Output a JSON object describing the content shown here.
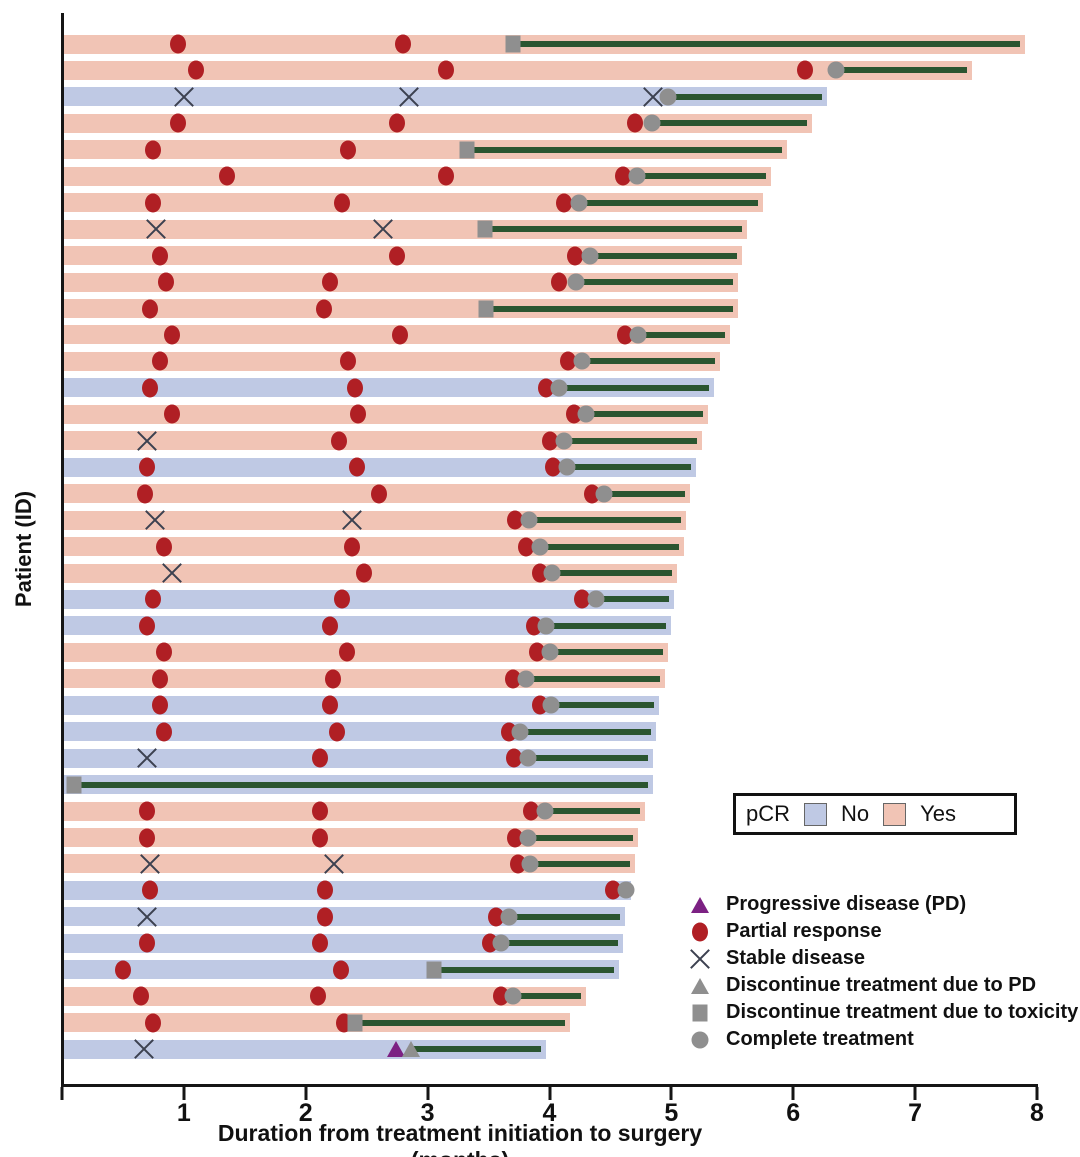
{
  "chart_data": {
    "type": "bar",
    "subtype": "swimmer-plot",
    "xlabel": "Duration from treatment initiation to surgery (months)",
    "ylabel": "Patient (ID)",
    "xlim": [
      0,
      8
    ],
    "xticks": [
      1,
      2,
      3,
      4,
      5,
      6,
      7,
      8
    ],
    "grid": false,
    "colors": {
      "pcr_yes": "#f1c4b5",
      "pcr_no": "#bfc9e4",
      "partial_response": "#b01f24",
      "marker_gray": "#8f8f8f",
      "treatment_line": "#2b5530",
      "progressive_disease": "#7c2183",
      "stable_x": "#3c4150",
      "axis": "#151515"
    },
    "pcr_legend": {
      "title": "pCR",
      "no_label": "No",
      "yes_label": "Yes"
    },
    "marker_legend": [
      {
        "marker": "PD",
        "label": "Progressive disease (PD)"
      },
      {
        "marker": "PR",
        "label": "Partial response"
      },
      {
        "marker": "SD",
        "label": "Stable disease"
      },
      {
        "marker": "DPD",
        "label": "Discontinue treatment due to PD"
      },
      {
        "marker": "TOX",
        "label": "Discontinue treatment due to toxicity"
      },
      {
        "marker": "COMP",
        "label": "Complete treatment"
      }
    ],
    "event_types": {
      "PD": "Progressive disease (PD)",
      "PR": "Partial response",
      "SD": "Stable disease",
      "DPD": "Discontinue treatment due to PD",
      "TOX": "Discontinue treatment due to toxicity",
      "COMP": "Complete treatment"
    },
    "patients": [
      {
        "pcr": "yes",
        "surgery": 7.9,
        "events": [
          [
            "PR",
            0.95
          ],
          [
            "PR",
            2.8
          ],
          [
            "TOX",
            3.7
          ]
        ]
      },
      {
        "pcr": "yes",
        "surgery": 7.47,
        "events": [
          [
            "PR",
            1.1
          ],
          [
            "PR",
            3.15
          ],
          [
            "PR",
            6.1
          ],
          [
            "COMP",
            6.35
          ]
        ]
      },
      {
        "pcr": "no",
        "surgery": 6.28,
        "events": [
          [
            "SD",
            1.0
          ],
          [
            "SD",
            2.85
          ],
          [
            "SD",
            4.85
          ],
          [
            "COMP",
            4.97
          ]
        ]
      },
      {
        "pcr": "yes",
        "surgery": 6.15,
        "events": [
          [
            "PR",
            0.95
          ],
          [
            "PR",
            2.75
          ],
          [
            "PR",
            4.7
          ],
          [
            "COMP",
            4.84
          ]
        ]
      },
      {
        "pcr": "yes",
        "surgery": 5.95,
        "events": [
          [
            "PR",
            0.75
          ],
          [
            "PR",
            2.35
          ],
          [
            "TOX",
            3.32
          ]
        ]
      },
      {
        "pcr": "yes",
        "surgery": 5.82,
        "events": [
          [
            "PR",
            1.35
          ],
          [
            "PR",
            3.15
          ],
          [
            "PR",
            4.6
          ],
          [
            "COMP",
            4.72
          ]
        ]
      },
      {
        "pcr": "yes",
        "surgery": 5.75,
        "events": [
          [
            "PR",
            0.75
          ],
          [
            "PR",
            2.3
          ],
          [
            "PR",
            4.12
          ],
          [
            "COMP",
            4.24
          ]
        ]
      },
      {
        "pcr": "yes",
        "surgery": 5.62,
        "events": [
          [
            "SD",
            0.77
          ],
          [
            "SD",
            2.63
          ],
          [
            "TOX",
            3.47
          ]
        ]
      },
      {
        "pcr": "yes",
        "surgery": 5.58,
        "events": [
          [
            "PR",
            0.8
          ],
          [
            "PR",
            2.75
          ],
          [
            "PR",
            4.21
          ],
          [
            "COMP",
            4.33
          ]
        ]
      },
      {
        "pcr": "yes",
        "surgery": 5.55,
        "events": [
          [
            "PR",
            0.85
          ],
          [
            "PR",
            2.2
          ],
          [
            "PR",
            4.08
          ],
          [
            "COMP",
            4.22
          ]
        ]
      },
      {
        "pcr": "yes",
        "surgery": 5.55,
        "events": [
          [
            "PR",
            0.72
          ],
          [
            "PR",
            2.15
          ],
          [
            "TOX",
            3.48
          ]
        ]
      },
      {
        "pcr": "yes",
        "surgery": 5.48,
        "events": [
          [
            "PR",
            0.9
          ],
          [
            "PR",
            2.77
          ],
          [
            "PR",
            4.62
          ],
          [
            "COMP",
            4.73
          ]
        ]
      },
      {
        "pcr": "yes",
        "surgery": 5.4,
        "events": [
          [
            "PR",
            0.8
          ],
          [
            "PR",
            2.35
          ],
          [
            "PR",
            4.15
          ],
          [
            "COMP",
            4.27
          ]
        ]
      },
      {
        "pcr": "no",
        "surgery": 5.35,
        "events": [
          [
            "PR",
            0.72
          ],
          [
            "PR",
            2.4
          ],
          [
            "PR",
            3.97
          ],
          [
            "COMP",
            4.08
          ]
        ]
      },
      {
        "pcr": "yes",
        "surgery": 5.3,
        "events": [
          [
            "PR",
            0.9
          ],
          [
            "PR",
            2.43
          ],
          [
            "PR",
            4.2
          ],
          [
            "COMP",
            4.3
          ]
        ]
      },
      {
        "pcr": "yes",
        "surgery": 5.25,
        "events": [
          [
            "SD",
            0.7
          ],
          [
            "PR",
            2.27
          ],
          [
            "PR",
            4.0
          ],
          [
            "COMP",
            4.12
          ]
        ]
      },
      {
        "pcr": "no",
        "surgery": 5.2,
        "events": [
          [
            "PR",
            0.7
          ],
          [
            "PR",
            2.42
          ],
          [
            "PR",
            4.03
          ],
          [
            "COMP",
            4.14
          ]
        ]
      },
      {
        "pcr": "yes",
        "surgery": 5.15,
        "events": [
          [
            "PR",
            0.68
          ],
          [
            "PR",
            2.6
          ],
          [
            "PR",
            4.35
          ],
          [
            "COMP",
            4.45
          ]
        ]
      },
      {
        "pcr": "yes",
        "surgery": 5.12,
        "events": [
          [
            "SD",
            0.76
          ],
          [
            "SD",
            2.38
          ],
          [
            "PR",
            3.72
          ],
          [
            "COMP",
            3.83
          ]
        ]
      },
      {
        "pcr": "yes",
        "surgery": 5.1,
        "events": [
          [
            "PR",
            0.84
          ],
          [
            "PR",
            2.38
          ],
          [
            "PR",
            3.81
          ],
          [
            "COMP",
            3.92
          ]
        ]
      },
      {
        "pcr": "yes",
        "surgery": 5.05,
        "events": [
          [
            "SD",
            0.9
          ],
          [
            "PR",
            2.48
          ],
          [
            "PR",
            3.92
          ],
          [
            "COMP",
            4.02
          ]
        ]
      },
      {
        "pcr": "no",
        "surgery": 5.02,
        "events": [
          [
            "PR",
            0.75
          ],
          [
            "PR",
            2.3
          ],
          [
            "PR",
            4.27
          ],
          [
            "COMP",
            4.38
          ]
        ]
      },
      {
        "pcr": "no",
        "surgery": 5.0,
        "events": [
          [
            "PR",
            0.7
          ],
          [
            "PR",
            2.2
          ],
          [
            "PR",
            3.87
          ],
          [
            "COMP",
            3.97
          ]
        ]
      },
      {
        "pcr": "yes",
        "surgery": 4.97,
        "events": [
          [
            "PR",
            0.84
          ],
          [
            "PR",
            2.34
          ],
          [
            "PR",
            3.9
          ],
          [
            "COMP",
            4.0
          ]
        ]
      },
      {
        "pcr": "yes",
        "surgery": 4.95,
        "events": [
          [
            "PR",
            0.8
          ],
          [
            "PR",
            2.22
          ],
          [
            "PR",
            3.7
          ],
          [
            "COMP",
            3.81
          ]
        ]
      },
      {
        "pcr": "no",
        "surgery": 4.9,
        "events": [
          [
            "PR",
            0.8
          ],
          [
            "PR",
            2.2
          ],
          [
            "PR",
            3.92
          ],
          [
            "COMP",
            4.01
          ]
        ]
      },
      {
        "pcr": "no",
        "surgery": 4.87,
        "events": [
          [
            "PR",
            0.84
          ],
          [
            "PR",
            2.26
          ],
          [
            "PR",
            3.67
          ],
          [
            "COMP",
            3.76
          ]
        ]
      },
      {
        "pcr": "no",
        "surgery": 4.85,
        "events": [
          [
            "SD",
            0.7
          ],
          [
            "PR",
            2.12
          ],
          [
            "PR",
            3.71
          ],
          [
            "COMP",
            3.82
          ]
        ]
      },
      {
        "pcr": "no",
        "surgery": 4.85,
        "events": [
          [
            "TOX",
            0.1
          ]
        ]
      },
      {
        "pcr": "yes",
        "surgery": 4.78,
        "events": [
          [
            "PR",
            0.7
          ],
          [
            "PR",
            2.12
          ],
          [
            "PR",
            3.85
          ],
          [
            "COMP",
            3.96
          ]
        ]
      },
      {
        "pcr": "yes",
        "surgery": 4.73,
        "events": [
          [
            "PR",
            0.7
          ],
          [
            "PR",
            2.12
          ],
          [
            "PR",
            3.72
          ],
          [
            "COMP",
            3.82
          ]
        ]
      },
      {
        "pcr": "yes",
        "surgery": 4.7,
        "events": [
          [
            "SD",
            0.72
          ],
          [
            "SD",
            2.23
          ],
          [
            "PR",
            3.74
          ],
          [
            "COMP",
            3.84
          ]
        ]
      },
      {
        "pcr": "no",
        "surgery": 4.67,
        "events": [
          [
            "PR",
            0.72
          ],
          [
            "PR",
            2.16
          ],
          [
            "PR",
            4.52
          ],
          [
            "COMP",
            4.63
          ]
        ]
      },
      {
        "pcr": "no",
        "surgery": 4.62,
        "events": [
          [
            "SD",
            0.7
          ],
          [
            "PR",
            2.16
          ],
          [
            "PR",
            3.56
          ],
          [
            "COMP",
            3.67
          ]
        ]
      },
      {
        "pcr": "no",
        "surgery": 4.6,
        "events": [
          [
            "PR",
            0.7
          ],
          [
            "PR",
            2.12
          ],
          [
            "PR",
            3.51
          ],
          [
            "COMP",
            3.6
          ]
        ]
      },
      {
        "pcr": "no",
        "surgery": 4.57,
        "events": [
          [
            "PR",
            0.5
          ],
          [
            "PR",
            2.29
          ],
          [
            "TOX",
            3.05
          ]
        ]
      },
      {
        "pcr": "yes",
        "surgery": 4.3,
        "events": [
          [
            "PR",
            0.65
          ],
          [
            "PR",
            2.1
          ],
          [
            "PR",
            3.6
          ],
          [
            "COMP",
            3.7
          ]
        ]
      },
      {
        "pcr": "yes",
        "surgery": 4.17,
        "events": [
          [
            "PR",
            0.75
          ],
          [
            "PR",
            2.31
          ],
          [
            "TOX",
            2.4
          ]
        ]
      },
      {
        "pcr": "no",
        "surgery": 3.97,
        "events": [
          [
            "SD",
            0.67
          ],
          [
            "PD",
            2.74
          ],
          [
            "DPD",
            2.86
          ]
        ]
      }
    ]
  }
}
